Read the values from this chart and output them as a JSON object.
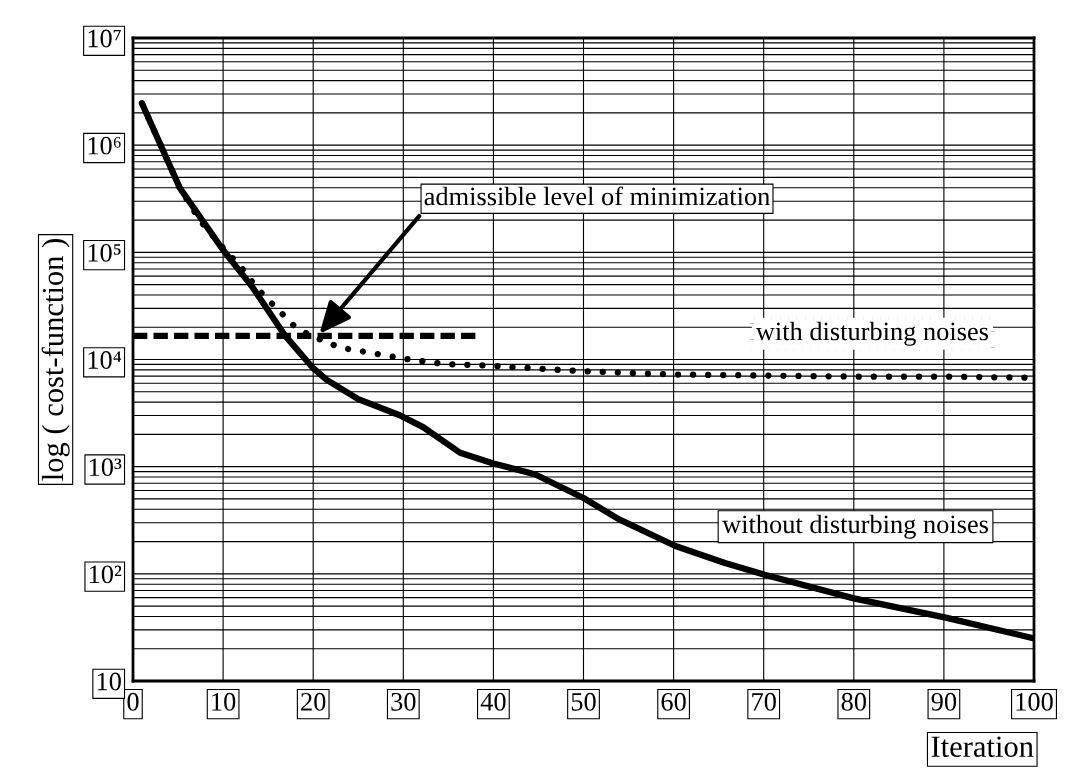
{
  "chart_data": {
    "type": "line",
    "xlabel": "Iteration",
    "ylabel": "log ( cost-function )",
    "log": "y",
    "grid": true,
    "legend": false,
    "xlim": [
      0,
      100
    ],
    "xticks": [
      0,
      10,
      20,
      30,
      40,
      50,
      60,
      70,
      80,
      90,
      100
    ],
    "ylim": [
      10,
      10000000
    ],
    "yticks": [
      {
        "value": 10,
        "label": "10"
      },
      {
        "value": 100,
        "label": "10²"
      },
      {
        "value": 1000,
        "label": "10³"
      },
      {
        "value": 10000,
        "label": "10⁴"
      },
      {
        "value": 100000,
        "label": "10⁵"
      },
      {
        "value": 1000000,
        "label": "10⁶"
      },
      {
        "value": 10000000,
        "label": "10⁷"
      }
    ],
    "series": [
      {
        "name": "without disturbing noises",
        "color": "#000000",
        "line_style": "solid",
        "x": [
          1,
          5.2,
          10,
          13.3,
          16.9,
          20,
          21.5,
          25,
          29.6,
          32.2,
          36.3,
          40,
          44.6,
          50,
          53.9,
          60.2,
          65.7,
          70.1,
          80,
          90.2,
          100
        ],
        "values": [
          2450000,
          398000,
          105000,
          46800,
          16600,
          8300,
          6460,
          4270,
          3020,
          2340,
          1350,
          1070,
          850,
          510,
          324,
          182,
          126,
          98,
          59,
          39,
          25
        ]
      },
      {
        "name": "with disturbing noises",
        "color": "#000000",
        "line_style": "dotted",
        "x": [
          1,
          5.2,
          7.4,
          10,
          12.1,
          13.8,
          15.8,
          17.8,
          19.1,
          20.4,
          23,
          26,
          30,
          34.4,
          40.2,
          50,
          60.2,
          70.4,
          80.5,
          90.6,
          99.3
        ],
        "values": [
          2450000,
          398000,
          200000,
          110000,
          70800,
          45700,
          30900,
          20900,
          17800,
          15800,
          12900,
          11700,
          10200,
          9100,
          8700,
          7760,
          7240,
          7080,
          6920,
          6920,
          6760
        ]
      },
      {
        "color": "#000000",
        "line_style": "dashed",
        "x": [
          0,
          38
        ],
        "values": [
          16600,
          16600
        ]
      }
    ],
    "annotations": [
      {
        "text": "admissible level of minimization",
        "x": 20.5,
        "y": 16600
      }
    ]
  }
}
